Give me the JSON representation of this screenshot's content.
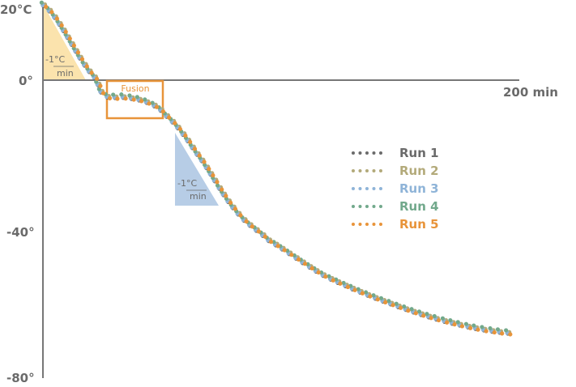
{
  "chart_data": {
    "type": "scatter",
    "x_unit": "min",
    "xlim": [
      0,
      200
    ],
    "ylim": [
      -80,
      20
    ],
    "y_tick_labels": [
      "20°C",
      "0°",
      "-40°",
      "-80°"
    ],
    "x_axis_label": "200 min",
    "grid": false,
    "legend_placement": "right-center",
    "annotations": {
      "fusion_label": "Fusion",
      "rate_numerator": "-1°C",
      "rate_denominator": "min"
    },
    "base_curve": {
      "x": [
        0,
        23,
        27,
        34,
        44,
        52,
        65,
        82,
        96,
        120,
        148,
        175,
        200
      ],
      "y": [
        20,
        0,
        -4.5,
        -4.7,
        -6,
        -9.4,
        -19.4,
        -35,
        -43,
        -52.6,
        -60,
        -65.3,
        -68
      ]
    },
    "series": [
      {
        "name": "Run 1",
        "color": "#6b6b6b",
        "x_shift": 0,
        "y_shift": -0.4
      },
      {
        "name": "Run 2",
        "color": "#b3aa7a",
        "x_shift": 0.6,
        "y_shift": 0
      },
      {
        "name": "Run 3",
        "color": "#8fb4d8",
        "x_shift": -0.3,
        "y_shift": -0.2
      },
      {
        "name": "Run 4",
        "color": "#72a98c",
        "x_shift": -0.8,
        "y_shift": 0.5
      },
      {
        "name": "Run 5",
        "color": "#e8943a",
        "x_shift": 1.0,
        "y_shift": -0.6
      }
    ],
    "colors": {
      "axis": "#777777",
      "fusion_box": "#e8943a",
      "cooling_triangle_1": "#fbe3ad",
      "cooling_triangle_2": "#b7cde6"
    }
  }
}
